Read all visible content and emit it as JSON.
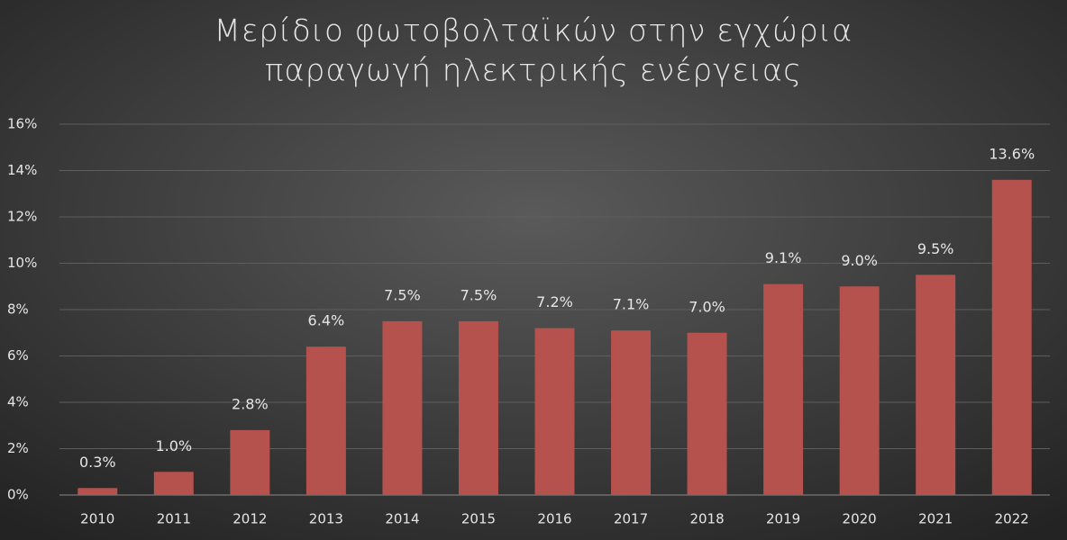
{
  "chart_data": {
    "type": "bar",
    "title": [
      "Μερίδιο φωτοβολταϊκών στην εγχώρια",
      "παραγωγή ηλεκτρικής ενέργειας"
    ],
    "categories": [
      "2010",
      "2011",
      "2012",
      "2013",
      "2014",
      "2015",
      "2016",
      "2017",
      "2018",
      "2019",
      "2020",
      "2021",
      "2022"
    ],
    "values": [
      0.3,
      1.0,
      2.8,
      6.4,
      7.5,
      7.5,
      7.2,
      7.1,
      7.0,
      9.1,
      9.0,
      9.5,
      13.6
    ],
    "value_labels": [
      "0.3%",
      "1.0%",
      "2.8%",
      "6.4%",
      "7.5%",
      "7.5%",
      "7.2%",
      "7.1%",
      "7.0%",
      "9.1%",
      "9.0%",
      "9.5%",
      "13.6%"
    ],
    "color": "#b5524e",
    "ylim": [
      0,
      16
    ],
    "yticks": [
      {
        "value": 0,
        "label": "0%"
      },
      {
        "value": 2,
        "label": "2%"
      },
      {
        "value": 4,
        "label": "4%"
      },
      {
        "value": 6,
        "label": "6%"
      },
      {
        "value": 8,
        "label": "8%"
      },
      {
        "value": 10,
        "label": "10%"
      },
      {
        "value": 12,
        "label": "12%"
      },
      {
        "value": 14,
        "label": "14%"
      },
      {
        "value": 16,
        "label": "16%"
      }
    ],
    "grid": true
  }
}
